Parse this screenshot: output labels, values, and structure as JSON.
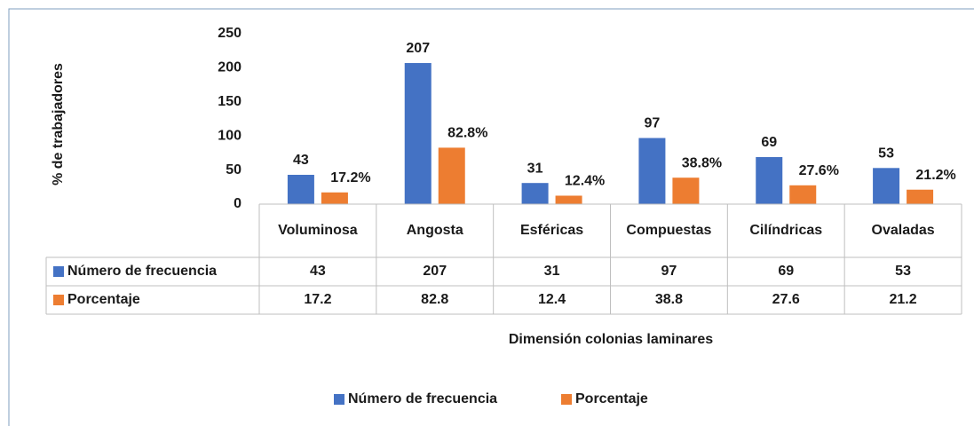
{
  "chart_data": {
    "type": "bar",
    "y_axis_label": "% de trabajadores",
    "x_axis_label": "Dimensión colonias laminares",
    "categories": [
      "Voluminosa",
      "Angosta",
      "Esféricas",
      "Compuestas",
      "Cilíndricas",
      "Ovaladas"
    ],
    "series": [
      {
        "name": "Número de frecuencia",
        "color": "#4472c4",
        "values": [
          43,
          207,
          31,
          97,
          69,
          53
        ]
      },
      {
        "name": "Porcentaje",
        "color": "#ed7d31",
        "values": [
          17.2,
          82.8,
          12.4,
          38.8,
          27.6,
          21.2
        ],
        "value_labels": [
          "17.2%",
          "82.8%",
          "12.4%",
          "38.8%",
          "27.6%",
          "21.2%"
        ]
      }
    ],
    "ylim": [
      0,
      250
    ],
    "yticks": [
      0,
      50,
      100,
      150,
      200,
      250
    ],
    "grid": false,
    "data_table": true,
    "legend": "bottom"
  }
}
